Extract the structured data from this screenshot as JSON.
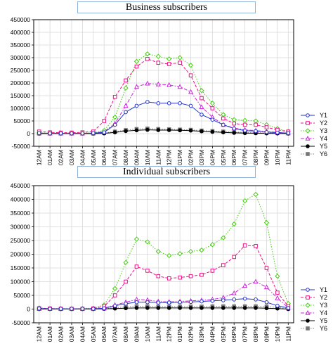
{
  "chart_data": [
    {
      "type": "line",
      "title": "Business subscribers",
      "xlabel": "",
      "ylabel": "",
      "categories": [
        "12AM",
        "01AM",
        "02AM",
        "03AM",
        "04AM",
        "05AM",
        "06AM",
        "07AM",
        "08AM",
        "09AM",
        "10AM",
        "11AM",
        "12PM",
        "01PM",
        "02PM",
        "03PM",
        "04PM",
        "05PM",
        "06PM",
        "07PM",
        "08PM",
        "09PM",
        "10PM",
        "11PM"
      ],
      "ylim": [
        -50000,
        450000
      ],
      "yticks": [
        -50000,
        0,
        50000,
        100000,
        150000,
        200000,
        250000,
        300000,
        350000,
        400000,
        450000
      ],
      "ytick_labels": [
        "-50000",
        "0",
        "50000",
        "100000",
        "150000",
        "200000",
        "250000",
        "300000",
        "350000",
        "400000",
        "450000"
      ],
      "grid": true,
      "legend": "right",
      "series": [
        {
          "name": "Y1",
          "color": "#2233cc",
          "marker": "circle",
          "dash": "solid",
          "values": [
            2000,
            1000,
            1000,
            1000,
            1000,
            2000,
            5000,
            35000,
            85000,
            110000,
            125000,
            120000,
            120000,
            120000,
            110000,
            75000,
            55000,
            35000,
            20000,
            12000,
            10000,
            6000,
            4000,
            2000
          ]
        },
        {
          "name": "Y2",
          "color": "#ee1188",
          "marker": "square",
          "dash": "dash",
          "values": [
            8000,
            5000,
            4000,
            4000,
            5000,
            8000,
            50000,
            145000,
            210000,
            265000,
            295000,
            280000,
            275000,
            280000,
            230000,
            140000,
            100000,
            60000,
            40000,
            35000,
            35000,
            25000,
            15000,
            8000
          ]
        },
        {
          "name": "Y3",
          "color": "#44cc11",
          "marker": "diamond",
          "dash": "dot",
          "values": [
            3000,
            2000,
            2000,
            2000,
            2000,
            3000,
            12000,
            65000,
            180000,
            285000,
            315000,
            305000,
            295000,
            300000,
            270000,
            170000,
            120000,
            75000,
            55000,
            52000,
            50000,
            35000,
            20000,
            8000
          ]
        },
        {
          "name": "Y4",
          "color": "#cc22dd",
          "marker": "triangle",
          "dash": "dashdot",
          "values": [
            2000,
            1000,
            1000,
            1000,
            1000,
            2000,
            8000,
            40000,
            110000,
            185000,
            198000,
            195000,
            192000,
            185000,
            165000,
            105000,
            65000,
            35000,
            22000,
            15000,
            12000,
            8000,
            5000,
            2000
          ]
        },
        {
          "name": "Y5",
          "color": "#000000",
          "marker": "circle-filled",
          "dash": "solid",
          "values": [
            0,
            0,
            0,
            0,
            0,
            0,
            1000,
            5000,
            10000,
            13000,
            15000,
            14000,
            14000,
            13000,
            12000,
            9000,
            7000,
            5000,
            3000,
            2000,
            1500,
            1000,
            500,
            0
          ]
        },
        {
          "name": "Y6",
          "color": "#777777",
          "marker": "square-filled",
          "dash": "dot",
          "values": [
            500,
            500,
            500,
            500,
            500,
            500,
            2000,
            8000,
            14000,
            18000,
            20000,
            18000,
            17000,
            16000,
            15000,
            12000,
            10000,
            8000,
            6000,
            5000,
            4000,
            3000,
            2000,
            1000
          ]
        }
      ]
    },
    {
      "type": "line",
      "title": "Individual subscribers",
      "xlabel": "",
      "ylabel": "",
      "categories": [
        "12AM",
        "01AM",
        "02AM",
        "03AM",
        "04AM",
        "05AM",
        "06AM",
        "07AM",
        "08AM",
        "09AM",
        "10AM",
        "11AM",
        "12PM",
        "01PM",
        "02PM",
        "03PM",
        "04PM",
        "05PM",
        "06PM",
        "07PM",
        "08PM",
        "09PM",
        "10PM",
        "11PM"
      ],
      "ylim": [
        -50000,
        450000
      ],
      "yticks": [
        -50000,
        0,
        50000,
        100000,
        150000,
        200000,
        250000,
        300000,
        350000,
        400000,
        450000
      ],
      "ytick_labels": [
        "-50000",
        "0",
        "50000",
        "100000",
        "150000",
        "200000",
        "250000",
        "300000",
        "350000",
        "400000",
        "450000"
      ],
      "grid": true,
      "legend": "right",
      "series": [
        {
          "name": "Y1",
          "color": "#2233cc",
          "marker": "circle",
          "dash": "solid",
          "values": [
            2000,
            1000,
            1000,
            1000,
            1000,
            1000,
            3000,
            12000,
            20000,
            25000,
            25000,
            24000,
            24000,
            25000,
            26000,
            28000,
            30000,
            32000,
            35000,
            38000,
            35000,
            25000,
            12000,
            4000
          ]
        },
        {
          "name": "Y2",
          "color": "#ee1188",
          "marker": "square",
          "dash": "dash",
          "values": [
            3000,
            2000,
            1000,
            1000,
            1000,
            2000,
            10000,
            50000,
            100000,
            155000,
            140000,
            120000,
            112000,
            115000,
            120000,
            125000,
            140000,
            160000,
            190000,
            232000,
            230000,
            150000,
            60000,
            10000
          ]
        },
        {
          "name": "Y3",
          "color": "#44cc11",
          "marker": "diamond",
          "dash": "dot",
          "values": [
            4000,
            2000,
            2000,
            1000,
            2000,
            3000,
            15000,
            75000,
            170000,
            255000,
            245000,
            210000,
            195000,
            202000,
            210000,
            215000,
            235000,
            260000,
            310000,
            395000,
            418000,
            315000,
            120000,
            20000
          ]
        },
        {
          "name": "Y4",
          "color": "#cc22dd",
          "marker": "triangle",
          "dash": "dashdot",
          "values": [
            1000,
            1000,
            1000,
            1000,
            1000,
            1000,
            3000,
            15000,
            25000,
            35000,
            33000,
            28000,
            26000,
            28000,
            30000,
            32000,
            35000,
            42000,
            58000,
            85000,
            100000,
            80000,
            40000,
            5000
          ]
        },
        {
          "name": "Y5",
          "color": "#000000",
          "marker": "circle-filled",
          "dash": "solid",
          "values": [
            0,
            0,
            0,
            0,
            0,
            0,
            1000,
            2000,
            3000,
            4000,
            4000,
            4000,
            4000,
            4000,
            4000,
            4000,
            4000,
            4000,
            4000,
            4000,
            4000,
            3000,
            2000,
            0
          ]
        },
        {
          "name": "Y6",
          "color": "#777777",
          "marker": "square-filled",
          "dash": "dot",
          "values": [
            1000,
            1000,
            500,
            500,
            500,
            500,
            2000,
            5000,
            8000,
            10000,
            10000,
            9000,
            9000,
            9000,
            9000,
            9000,
            10000,
            10000,
            10000,
            10000,
            10000,
            9000,
            6000,
            2000
          ]
        }
      ]
    }
  ]
}
